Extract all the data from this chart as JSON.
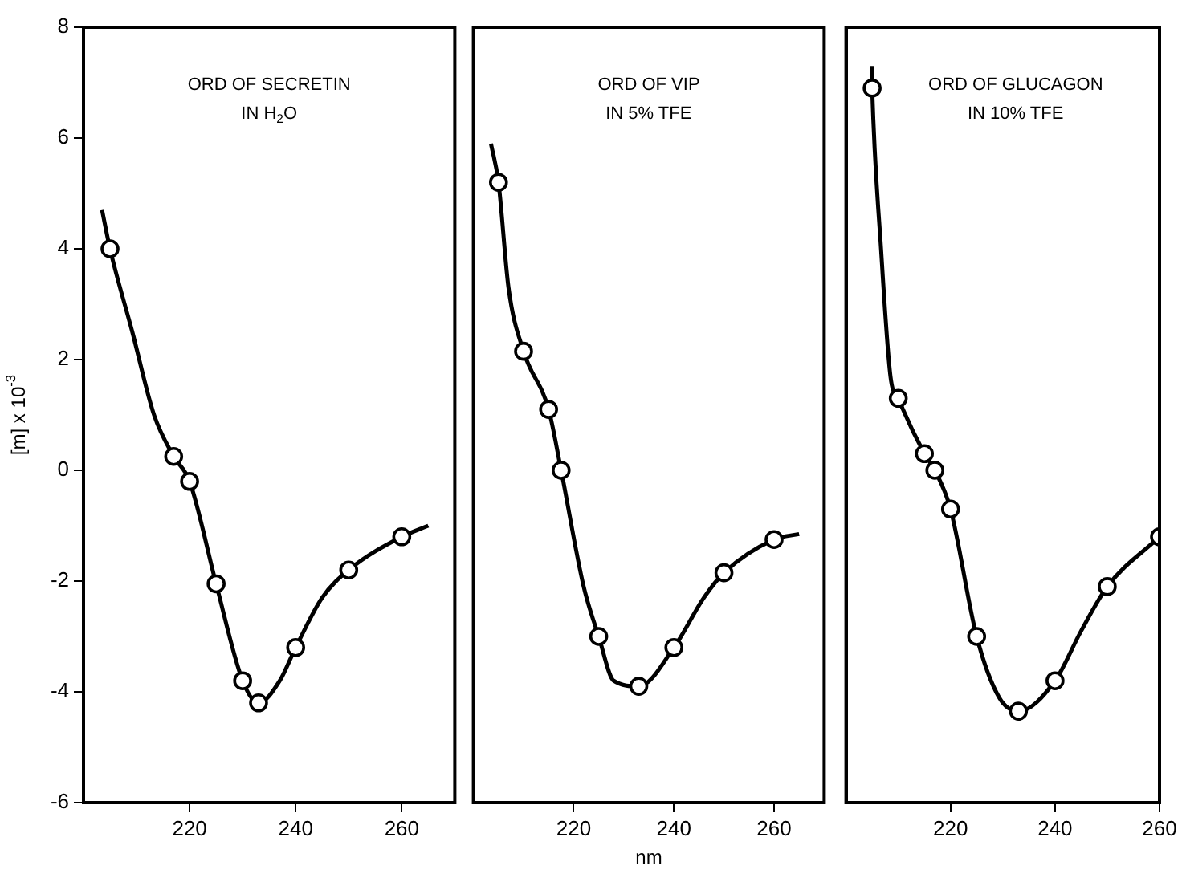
{
  "chart_data": [
    {
      "type": "line",
      "ylabel": "[m] x 10$^{-3}$",
      "annotations": [
        "ORD OF SECRETIN\nIN H$_{2}$O"
      ],
      "xlim": [
        200,
        270
      ],
      "xticks": [
        220,
        240,
        260
      ],
      "ylim": [
        -6,
        8
      ],
      "yticks": [
        -6,
        -4,
        -2,
        0,
        2,
        4,
        6,
        8
      ],
      "grid": false,
      "legend": false,
      "series": [
        {
          "type": "line",
          "marker": "none",
          "color": "#000000",
          "x": [
            203.5,
            205,
            209.2,
            213.3,
            217,
            220,
            225,
            230,
            233,
            237,
            240,
            245,
            250,
            260,
            265
          ],
          "values": [
            4.7,
            4.0,
            2.5,
            1.0,
            0.25,
            -0.2,
            -2.05,
            -3.8,
            -4.2,
            -3.8,
            -3.2,
            -2.3,
            -1.8,
            -1.2,
            -1.0
          ]
        },
        {
          "type": "scatter",
          "marker": "circle",
          "color": "#000000",
          "x": [
            205,
            217,
            220,
            225,
            230,
            233,
            240,
            250,
            260
          ],
          "values": [
            4.0,
            0.25,
            -0.2,
            -2.05,
            -3.8,
            -4.2,
            -3.2,
            -1.8,
            -1.2
          ]
        }
      ]
    },
    {
      "type": "line",
      "xlabel": "nm",
      "annotations": [
        "ORD OF VIP\nIN 5% TFE"
      ],
      "xlim": [
        200,
        270
      ],
      "xticks": [
        220,
        240,
        260
      ],
      "ylim": [
        -6,
        8
      ],
      "yticks": [
        -6,
        -4,
        -2,
        0,
        2,
        4,
        6,
        8
      ],
      "tick_labels": "x",
      "grid": false,
      "legend": false,
      "series": [
        {
          "type": "line",
          "marker": "none",
          "color": "#000000",
          "x": [
            203.5,
            205,
            207,
            210,
            215,
            217.5,
            222,
            225,
            228,
            233,
            240,
            246,
            250,
            260,
            265
          ],
          "values": [
            5.9,
            5.2,
            3.3,
            2.15,
            1.1,
            0,
            -2.1,
            -3.0,
            -3.8,
            -3.9,
            -3.2,
            -2.3,
            -1.85,
            -1.25,
            -1.15
          ]
        },
        {
          "type": "scatter",
          "marker": "circle",
          "color": "#000000",
          "x": [
            205,
            210,
            215,
            217.5,
            225,
            233,
            240,
            250,
            260
          ],
          "values": [
            5.2,
            2.15,
            1.1,
            0,
            -3.0,
            -3.9,
            -3.2,
            -1.85,
            -1.25
          ]
        }
      ]
    },
    {
      "type": "line",
      "annotations": [
        "ORD OF GLUCAGON\nIN 10% TFE"
      ],
      "xlim": [
        200,
        260
      ],
      "xticks": [
        220,
        240,
        260
      ],
      "ylim": [
        -6,
        8
      ],
      "yticks": [
        -6,
        -4,
        -2,
        0,
        2,
        4,
        6,
        8
      ],
      "tick_labels": "x",
      "grid": false,
      "legend": false,
      "series": [
        {
          "type": "line",
          "marker": "none",
          "color": "#000000",
          "x": [
            204.9,
            205,
            206.7,
            208.5,
            210,
            215,
            217,
            220,
            225,
            229.3,
            233,
            240,
            245,
            250,
            260
          ],
          "values": [
            7.3,
            6.9,
            4.0,
            1.7,
            1.3,
            0.3,
            0,
            -0.7,
            -3.0,
            -4.1,
            -4.35,
            -3.8,
            -2.9,
            -2.1,
            -1.2
          ]
        },
        {
          "type": "scatter",
          "marker": "circle",
          "color": "#000000",
          "x": [
            205,
            210,
            215,
            217,
            220,
            225,
            233,
            240,
            250,
            260
          ],
          "values": [
            6.9,
            1.3,
            0.3,
            0,
            -0.7,
            -3.0,
            -4.35,
            -3.8,
            -2.1,
            -1.2
          ]
        }
      ]
    }
  ]
}
